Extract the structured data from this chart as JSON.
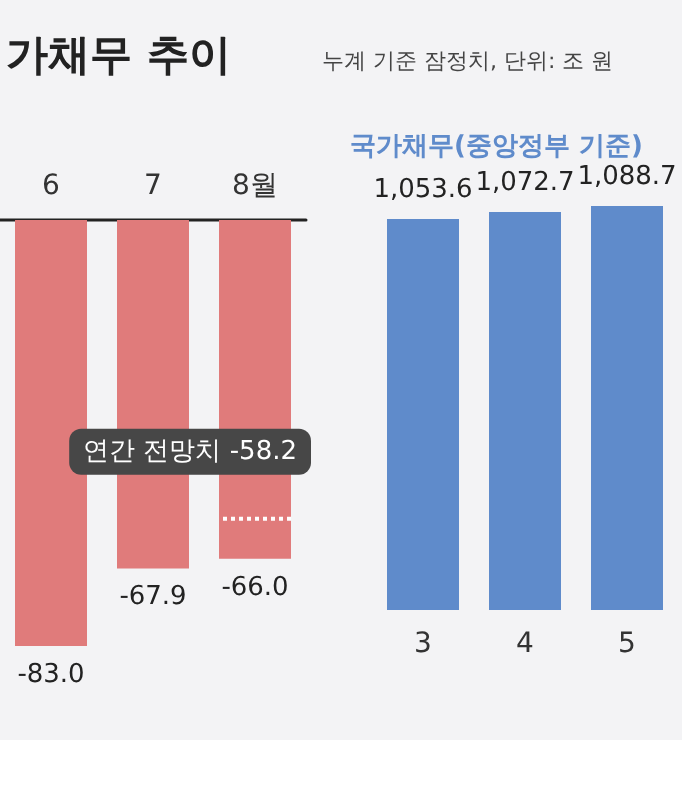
{
  "chart_data": [
    {
      "type": "bar",
      "title": "가채무 추이",
      "categories": [
        "6",
        "7",
        "8월"
      ],
      "values": [
        -83.0,
        -67.9,
        -66.0
      ],
      "value_labels": [
        "-83.0",
        "-67.9",
        "-66.0"
      ],
      "color": "#e07b7b",
      "tick_labels": "x",
      "ref_lines": [
        {
          "axis": "y",
          "value": -58.2,
          "label": "연간 전망치 -58.2",
          "color": "#ffffff",
          "line_style": "dotted"
        }
      ]
    },
    {
      "type": "bar",
      "title": "국가채무(중앙정부 기준)",
      "subtitle": "누계 기준 잠정치, 단위: 조 원",
      "categories": [
        "3",
        "4",
        "5"
      ],
      "values": [
        1053.6,
        1072.7,
        1088.7
      ],
      "value_labels": [
        "1,053.6",
        "1,072.7",
        "1,088.7"
      ],
      "color": "#5f8bcb",
      "tick_labels": "x"
    }
  ]
}
